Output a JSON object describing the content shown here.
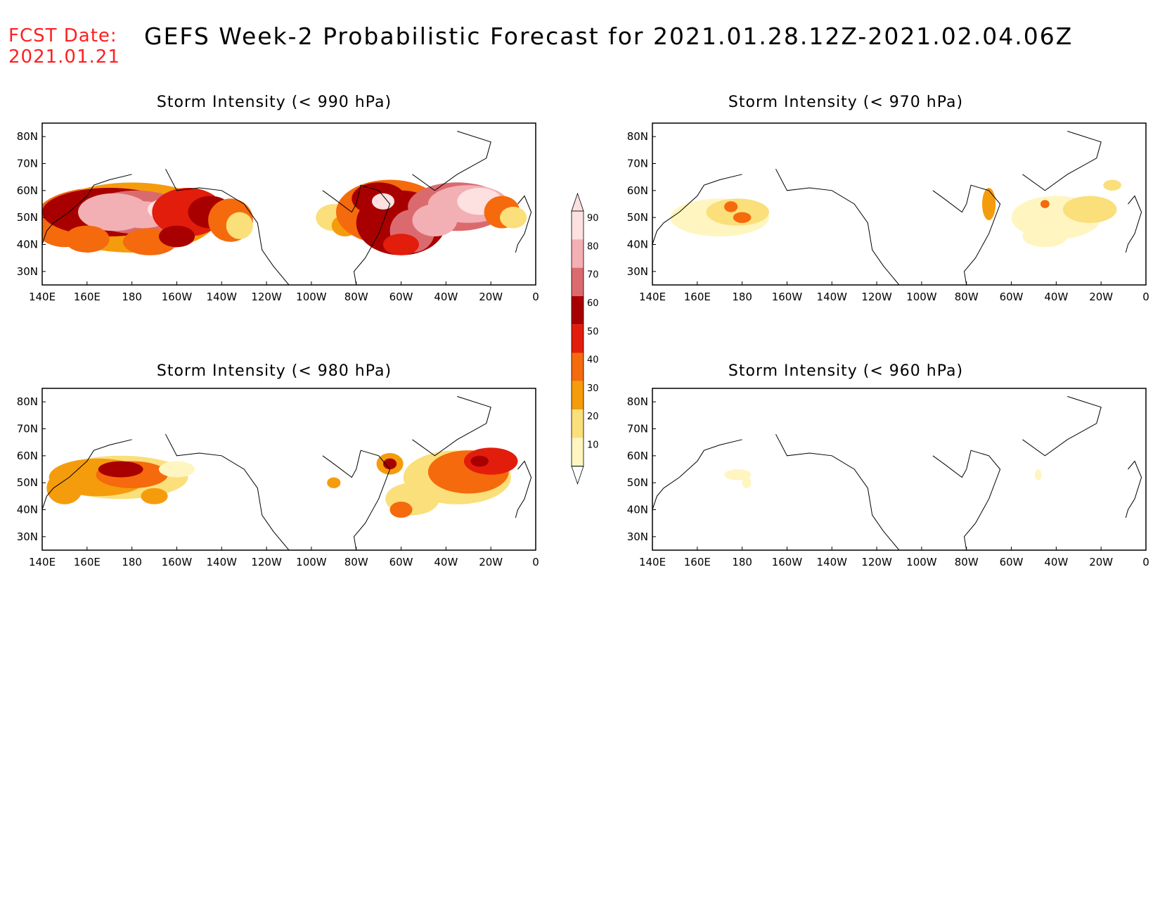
{
  "header": {
    "fcst_label": "FCST Date:",
    "fcst_date": "2021.01.21",
    "title": "GEFS Week-2 Probabilistic Forecast for 2021.01.28.12Z-2021.02.04.06Z"
  },
  "axes": {
    "lon_labels": [
      "140E",
      "160E",
      "180",
      "160W",
      "140W",
      "120W",
      "100W",
      "80W",
      "60W",
      "40W",
      "20W",
      "0"
    ],
    "lat_labels": [
      "80N",
      "70N",
      "60N",
      "50N",
      "40N",
      "30N"
    ]
  },
  "colorbar": {
    "levels": [
      "90",
      "80",
      "70",
      "60",
      "50",
      "40",
      "30",
      "20",
      "10"
    ],
    "colors": [
      "#fde0e0",
      "#f2b0b4",
      "#db6a6f",
      "#a80000",
      "#e21d0c",
      "#f56a0c",
      "#f59c0c",
      "#fadf7a",
      "#fff5c0"
    ]
  },
  "panels": [
    {
      "id": "p990",
      "title": "Storm Intensity (< 990 hPa)"
    },
    {
      "id": "p970",
      "title": "Storm Intensity (< 970 hPa)"
    },
    {
      "id": "p980",
      "title": "Storm Intensity (< 980 hPa)"
    },
    {
      "id": "p960",
      "title": "Storm Intensity (< 960 hPa)"
    }
  ]
}
